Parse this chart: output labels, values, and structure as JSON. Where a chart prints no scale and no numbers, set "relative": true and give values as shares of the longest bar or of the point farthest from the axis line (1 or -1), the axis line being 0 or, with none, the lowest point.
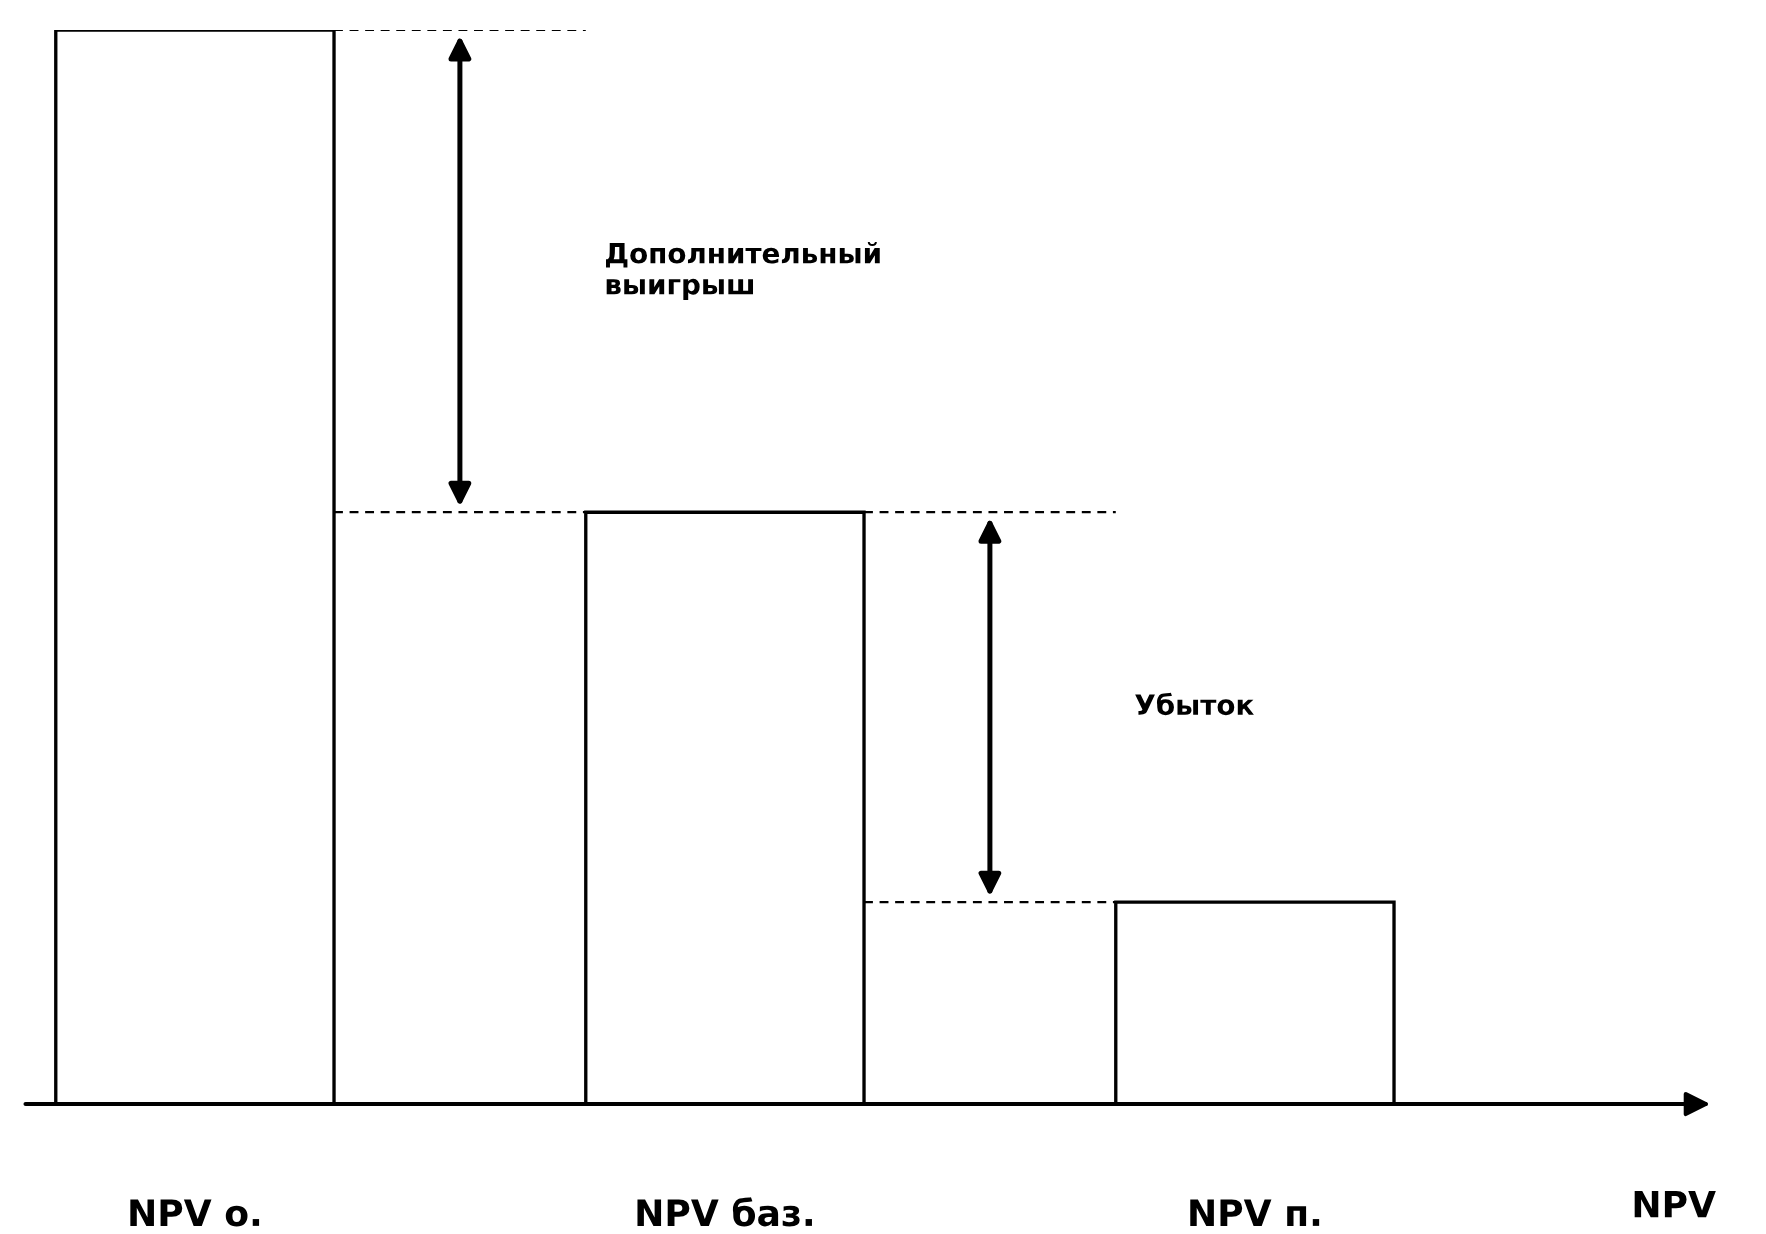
{
  "chart_data": {
    "type": "bar",
    "relative": true,
    "categories": [
      "NPV о.",
      "NPV баз.",
      "NPV п."
    ],
    "values": [
      1,
      0.551,
      0.188
    ],
    "color": "#ffffff",
    "xlabel": "NPV",
    "ref_lines": [
      {
        "axis": "y",
        "value": 1,
        "color": "#000000",
        "line_style": "dashed"
      },
      {
        "axis": "y",
        "value": 0.551,
        "color": "#000000",
        "line_style": "dashed"
      },
      {
        "axis": "y",
        "value": 0.188,
        "color": "#000000",
        "line_style": "dashed"
      }
    ],
    "annotations": [
      "Дополнительный\nвыигрыш",
      "Убыток"
    ],
    "grid": false
  }
}
